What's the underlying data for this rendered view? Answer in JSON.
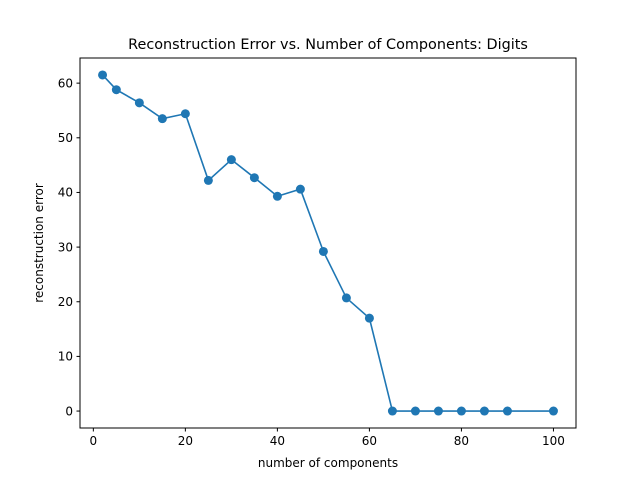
{
  "chart_data": {
    "type": "line",
    "title": "Reconstruction Error vs. Number of Components: Digits",
    "xlabel": "number of components",
    "ylabel": "reconstruction error",
    "xlim": [
      -2.9,
      104.9
    ],
    "ylim": [
      -3.1,
      64.6
    ],
    "xticks": [
      0,
      20,
      40,
      60,
      80,
      100
    ],
    "yticks": [
      0,
      10,
      20,
      30,
      40,
      50,
      60
    ],
    "grid": false,
    "legend": "none",
    "series": [
      {
        "color": "#1f77b4",
        "marker": "circle",
        "x": [
          2,
          5,
          10,
          15,
          20,
          25,
          30,
          35,
          40,
          45,
          50,
          55,
          60,
          65,
          70,
          75,
          80,
          85,
          90,
          100
        ],
        "y": [
          61.5,
          58.8,
          56.4,
          53.5,
          54.4,
          42.2,
          46.0,
          42.7,
          39.3,
          40.6,
          29.2,
          20.7,
          17.0,
          0.0,
          0.0,
          0.0,
          0.0,
          0.0,
          0.0,
          0.0
        ]
      }
    ]
  }
}
